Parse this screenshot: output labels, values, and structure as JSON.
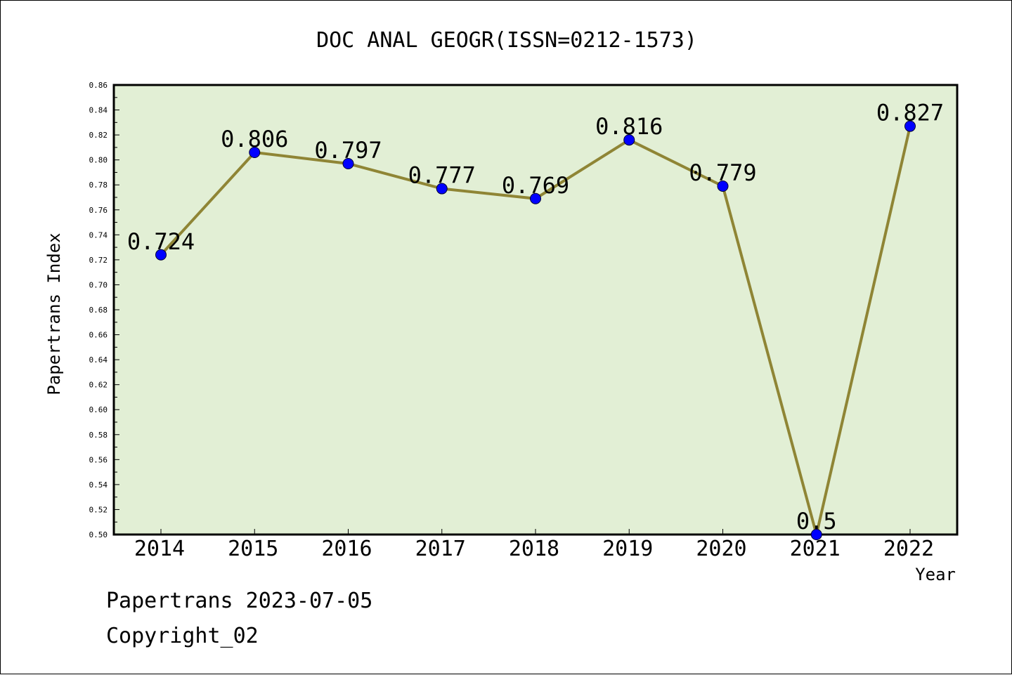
{
  "chart_data": {
    "type": "line",
    "title": "DOC ANAL GEOGR(ISSN=0212-1573)",
    "xlabel": "Year",
    "ylabel": "Papertrans Index",
    "categories": [
      "2014",
      "2015",
      "2016",
      "2017",
      "2018",
      "2019",
      "2020",
      "2021",
      "2022"
    ],
    "values": [
      0.724,
      0.806,
      0.797,
      0.777,
      0.769,
      0.816,
      0.779,
      0.5,
      0.827
    ],
    "data_labels": [
      "0.724",
      "0.806",
      "0.797",
      "0.777",
      "0.769",
      "0.816",
      "0.779",
      "0.5",
      "0.827"
    ],
    "ylim": [
      0.5,
      0.86
    ],
    "yticks": [
      "0.50",
      "0.52",
      "0.54",
      "0.56",
      "0.58",
      "0.60",
      "0.62",
      "0.64",
      "0.66",
      "0.68",
      "0.70",
      "0.72",
      "0.74",
      "0.76",
      "0.78",
      "0.80",
      "0.82",
      "0.84",
      "0.86"
    ],
    "grid": false,
    "colors": {
      "plot_background": "#e2efd5",
      "line": "#8f8535",
      "marker": "#0000ff"
    }
  },
  "footer": {
    "line1": "Papertrans 2023-07-05",
    "line2": "Copyright_02"
  }
}
